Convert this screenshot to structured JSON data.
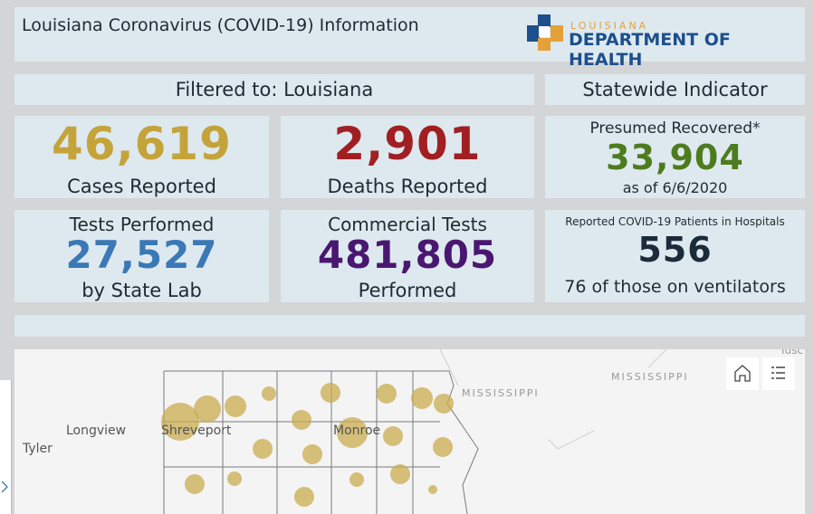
{
  "header": {
    "title": "Louisiana Coronavirus (COVID-19) Information",
    "logo_top": "LOUISIANA",
    "logo_bottom": "DEPARTMENT OF HEALTH"
  },
  "filter_label": "Filtered to: Louisiana",
  "statewide_label": "Statewide Indicator",
  "cards": [
    {
      "value": "46,619",
      "bottom": "Cases Reported"
    },
    {
      "value": "2,901",
      "bottom": "Deaths Reported"
    },
    {
      "top": "Presumed Recovered*",
      "value": "33,904",
      "bottom": "as of 6/6/2020"
    },
    {
      "top": "Tests Performed",
      "value": "27,527",
      "bottom": "by State Lab"
    },
    {
      "top": "Commercial Tests",
      "value": "481,805",
      "bottom": "Performed"
    },
    {
      "top": "Reported COVID-19 Patients in Hospitals",
      "value": "556",
      "bottom": "76 of those on ventilators"
    }
  ],
  "map": {
    "labels": [
      "Longview",
      "Tyler",
      "Shreveport",
      "Monroe",
      "MISSISSIPPI",
      "MISSISSIPPI",
      "Tusc"
    ]
  }
}
